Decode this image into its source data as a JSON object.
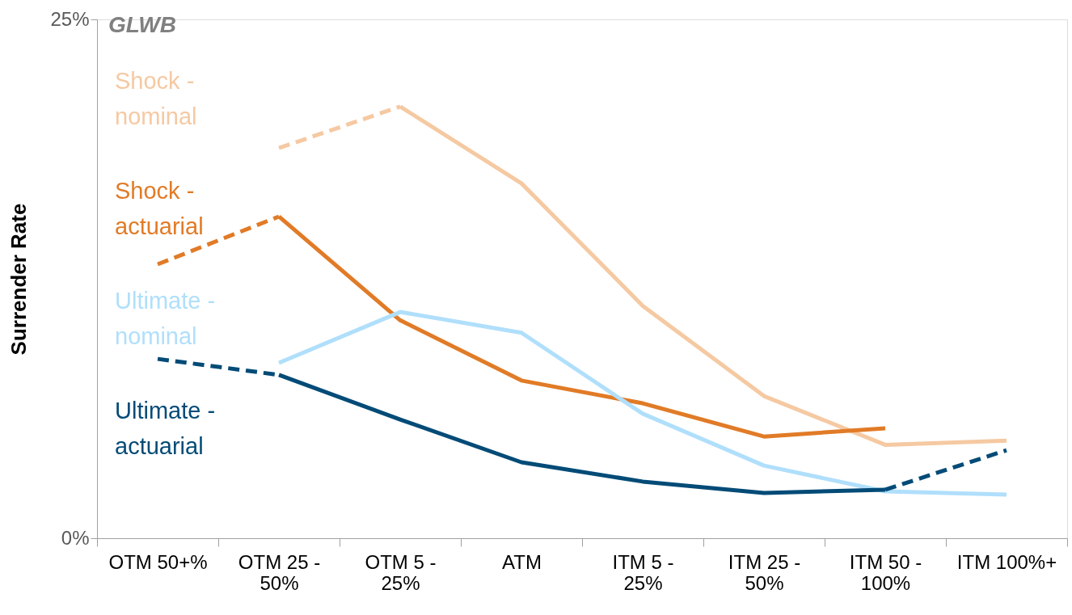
{
  "chart_data": {
    "type": "line",
    "title": "GLWB",
    "ylabel": "Surrender Rate",
    "categories": [
      "OTM 50+%",
      "OTM 25 - 50%",
      "OTM 5 - 25%",
      "ATM",
      "ITM 5 - 25%",
      "ITM 25 - 50%",
      "ITM 50 - 100%",
      "ITM 100%+"
    ],
    "series": [
      {
        "name": "Shock - nominal",
        "color": "#f5c9a2",
        "line_style": "solid",
        "values": [
          null,
          null,
          20.8,
          17.1,
          11.2,
          6.85,
          4.5,
          4.7
        ]
      },
      {
        "color": "#f5c9a2",
        "line_style": "dashed",
        "values": [
          null,
          18.8,
          20.8,
          null,
          null,
          null,
          null,
          null
        ]
      },
      {
        "name": "Shock - actuarial",
        "color": "#e17b27",
        "line_style": "solid",
        "values": [
          null,
          15.5,
          10.5,
          7.6,
          6.5,
          4.9,
          5.3,
          null
        ]
      },
      {
        "color": "#e17b27",
        "line_style": "dashed",
        "values": [
          13.2,
          15.5,
          null,
          null,
          null,
          null,
          null,
          null
        ]
      },
      {
        "name": "Ultimate - nominal",
        "color": "#b0dffb",
        "line_style": "solid",
        "values": [
          null,
          8.45,
          10.9,
          9.9,
          6.0,
          3.5,
          2.26,
          2.1
        ]
      },
      {
        "name": "Ultimate - actuarial",
        "color": "#034b77",
        "line_style": "solid",
        "values": [
          null,
          7.87,
          5.72,
          3.66,
          2.73,
          2.18,
          2.34,
          null
        ]
      },
      {
        "color": "#034b77",
        "line_style": "dashed",
        "values": [
          8.64,
          7.87,
          null,
          null,
          null,
          null,
          2.34,
          4.24
        ]
      }
    ],
    "ylim": [
      0,
      25
    ],
    "yticks": [
      {
        "value": 0,
        "label": "0%"
      },
      {
        "value": 25,
        "label": "25%"
      }
    ],
    "grid": false,
    "legend": false,
    "marker": "none"
  }
}
